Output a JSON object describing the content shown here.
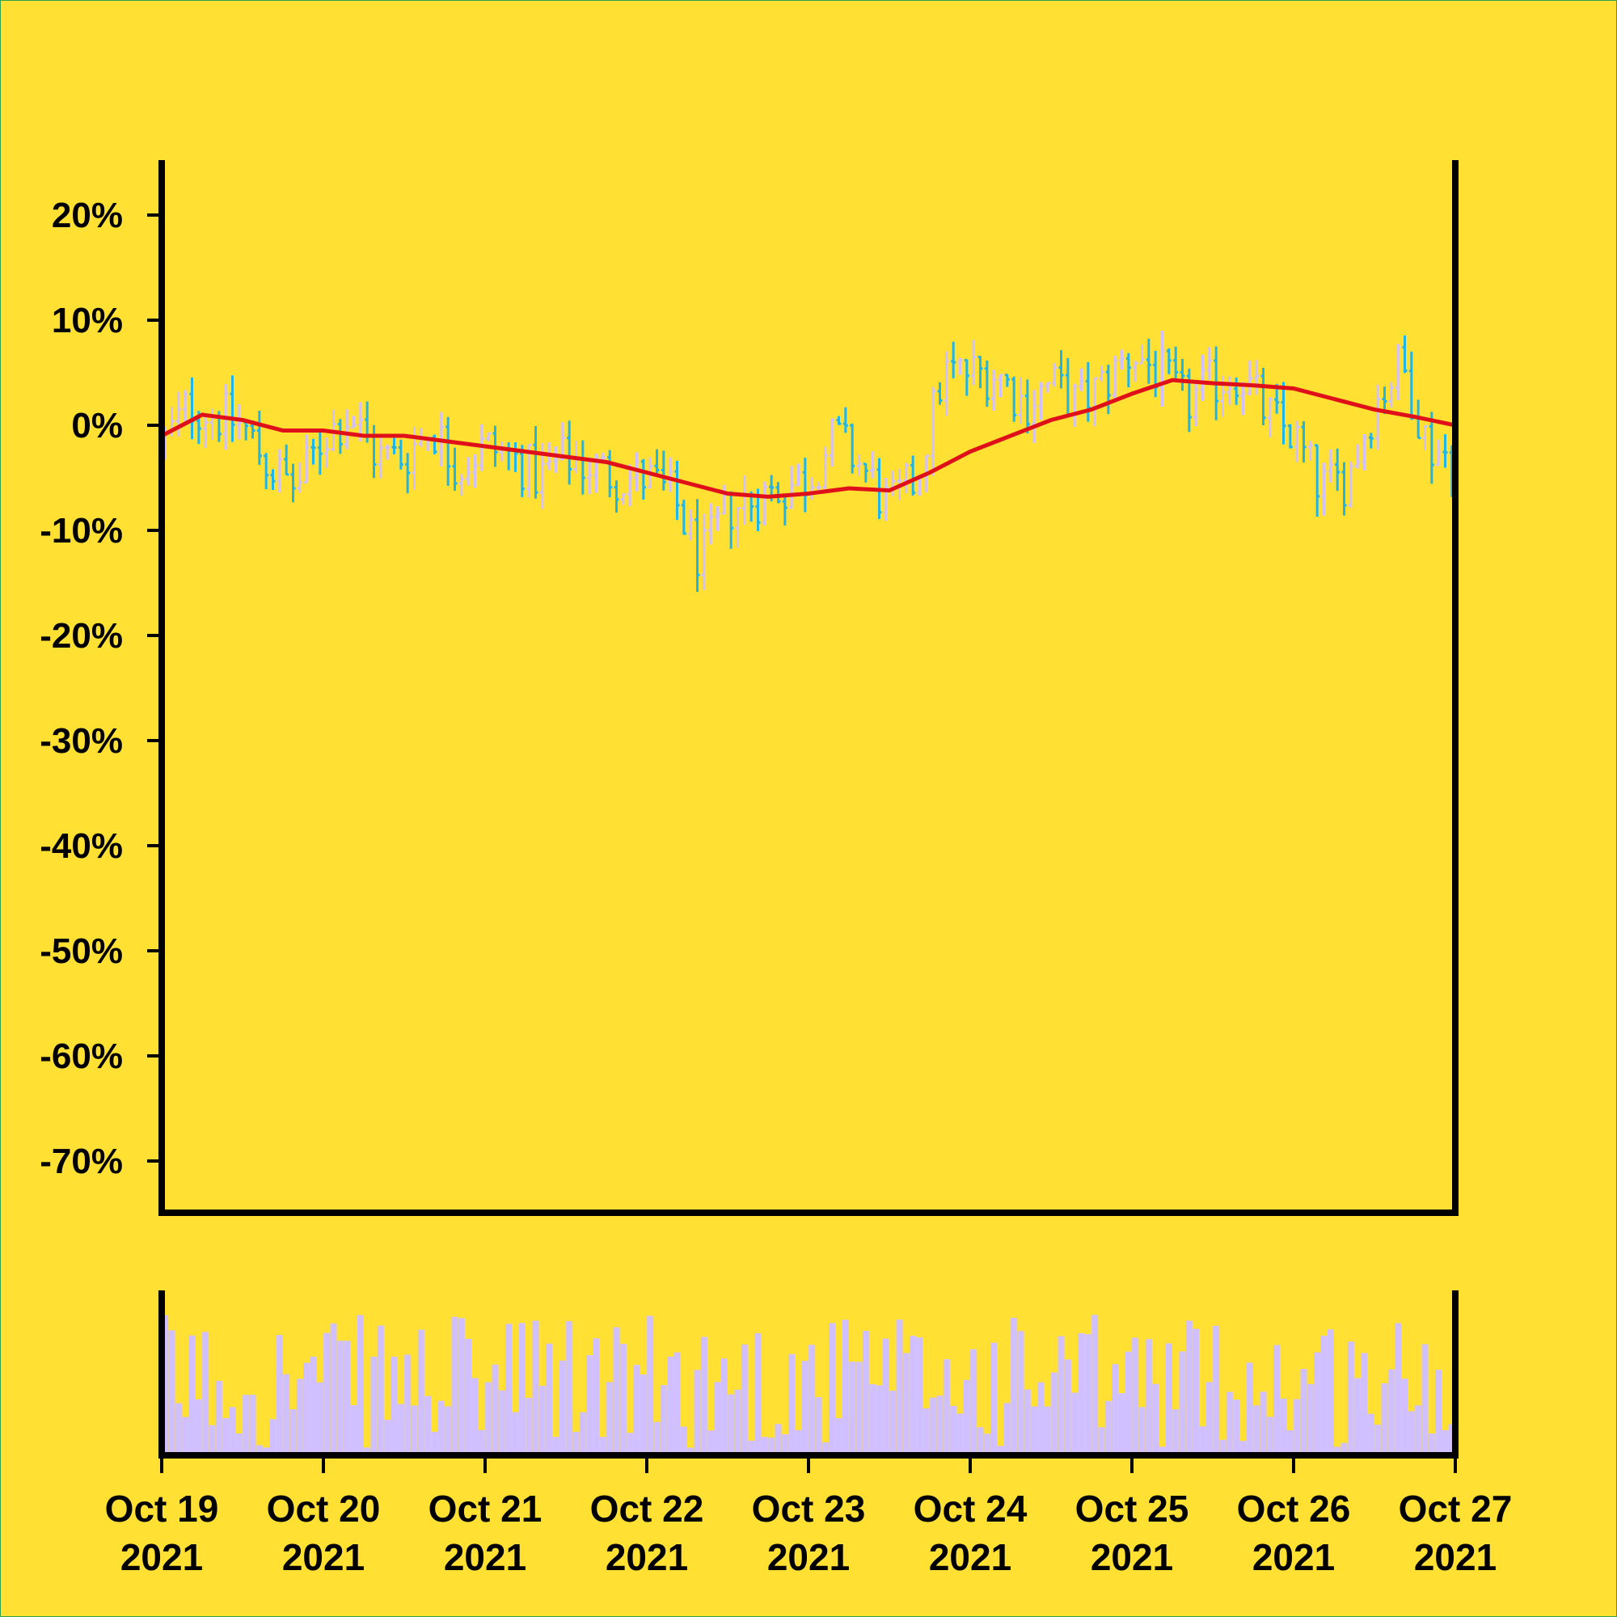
{
  "chart_data": {
    "type": "ohlc",
    "title": "",
    "xlabel": "",
    "ylabel": "",
    "ylim": [
      -0.75,
      0.25
    ],
    "y_ticks": [
      {
        "value": 0.2,
        "label": "20%"
      },
      {
        "value": 0.1,
        "label": "10%"
      },
      {
        "value": 0.0,
        "label": "0%"
      },
      {
        "value": -0.1,
        "label": "-10%"
      },
      {
        "value": -0.2,
        "label": "-20%"
      },
      {
        "value": -0.3,
        "label": "-30%"
      },
      {
        "value": -0.4,
        "label": "-40%"
      },
      {
        "value": -0.5,
        "label": "-50%"
      },
      {
        "value": -0.6,
        "label": "-60%"
      },
      {
        "value": -0.7,
        "label": "-70%"
      }
    ],
    "x_ticks": [
      {
        "date": "2021-10-19",
        "line1": "Oct 19",
        "line2": "2021"
      },
      {
        "date": "2021-10-20",
        "line1": "Oct 20",
        "line2": "2021"
      },
      {
        "date": "2021-10-21",
        "line1": "Oct 21",
        "line2": "2021"
      },
      {
        "date": "2021-10-22",
        "line1": "Oct 22",
        "line2": "2021"
      },
      {
        "date": "2021-10-23",
        "line1": "Oct 23",
        "line2": "2021"
      },
      {
        "date": "2021-10-24",
        "line1": "Oct 24",
        "line2": "2021"
      },
      {
        "date": "2021-10-25",
        "line1": "Oct 25",
        "line2": "2021"
      },
      {
        "date": "2021-10-26",
        "line1": "Oct 26",
        "line2": "2021"
      },
      {
        "date": "2021-10-27",
        "line1": "Oct 27",
        "line2": "2021"
      }
    ],
    "x_range": [
      "2021-10-19",
      "2021-10-27"
    ],
    "price_close_curve": [
      [
        "2021-10-19T00:00",
        -0.02
      ],
      [
        "2021-10-19T04:00",
        0.02
      ],
      [
        "2021-10-19T08:00",
        0.01
      ],
      [
        "2021-10-19T12:00",
        0.0
      ],
      [
        "2021-10-19T16:00",
        -0.04
      ],
      [
        "2021-10-19T20:00",
        -0.06
      ],
      [
        "2021-10-20T00:00",
        -0.01
      ],
      [
        "2021-10-20T04:00",
        0.01
      ],
      [
        "2021-10-20T08:00",
        -0.03
      ],
      [
        "2021-10-20T12:00",
        -0.03
      ],
      [
        "2021-10-20T16:00",
        0.0
      ],
      [
        "2021-10-20T20:00",
        -0.04
      ],
      [
        "2021-10-21T00:00",
        -0.02
      ],
      [
        "2021-10-21T04:00",
        -0.03
      ],
      [
        "2021-10-21T08:00",
        -0.05
      ],
      [
        "2021-10-21T12:00",
        -0.03
      ],
      [
        "2021-10-21T16:00",
        -0.04
      ],
      [
        "2021-10-21T20:00",
        -0.05
      ],
      [
        "2021-10-22T00:00",
        -0.05
      ],
      [
        "2021-10-22T04:00",
        -0.07
      ],
      [
        "2021-10-22T08:00",
        -0.13
      ],
      [
        "2021-10-22T12:00",
        -0.08
      ],
      [
        "2021-10-22T16:00",
        -0.07
      ],
      [
        "2021-10-22T20:00",
        -0.06
      ],
      [
        "2021-10-23T00:00",
        -0.05
      ],
      [
        "2021-10-23T04:00",
        -0.01
      ],
      [
        "2021-10-23T08:00",
        -0.04
      ],
      [
        "2021-10-23T12:00",
        -0.08
      ],
      [
        "2021-10-23T16:00",
        -0.05
      ],
      [
        "2021-10-23T20:00",
        0.05
      ],
      [
        "2021-10-24T00:00",
        0.05
      ],
      [
        "2021-10-24T04:00",
        0.05
      ],
      [
        "2021-10-24T08:00",
        0.02
      ],
      [
        "2021-10-24T12:00",
        0.04
      ],
      [
        "2021-10-24T16:00",
        0.02
      ],
      [
        "2021-10-24T20:00",
        0.04
      ],
      [
        "2021-10-25T00:00",
        0.07
      ],
      [
        "2021-10-25T04:00",
        0.05
      ],
      [
        "2021-10-25T08:00",
        0.02
      ],
      [
        "2021-10-25T12:00",
        0.04
      ],
      [
        "2021-10-25T16:00",
        0.05
      ],
      [
        "2021-10-25T20:00",
        0.01
      ],
      [
        "2021-10-26T00:00",
        -0.01
      ],
      [
        "2021-10-26T04:00",
        -0.06
      ],
      [
        "2021-10-26T08:00",
        -0.05
      ],
      [
        "2021-10-26T12:00",
        0.02
      ],
      [
        "2021-10-26T16:00",
        0.06
      ],
      [
        "2021-10-26T20:00",
        -0.02
      ],
      [
        "2021-10-27T00:00",
        -0.03
      ]
    ],
    "moving_average": [
      [
        "2021-10-19T00:00",
        -0.01
      ],
      [
        "2021-10-19T06:00",
        0.01
      ],
      [
        "2021-10-19T12:00",
        0.005
      ],
      [
        "2021-10-19T18:00",
        -0.005
      ],
      [
        "2021-10-20T00:00",
        -0.005
      ],
      [
        "2021-10-20T06:00",
        -0.01
      ],
      [
        "2021-10-20T12:00",
        -0.01
      ],
      [
        "2021-10-20T18:00",
        -0.015
      ],
      [
        "2021-10-21T00:00",
        -0.02
      ],
      [
        "2021-10-21T06:00",
        -0.025
      ],
      [
        "2021-10-21T12:00",
        -0.03
      ],
      [
        "2021-10-21T18:00",
        -0.035
      ],
      [
        "2021-10-22T00:00",
        -0.045
      ],
      [
        "2021-10-22T06:00",
        -0.055
      ],
      [
        "2021-10-22T12:00",
        -0.065
      ],
      [
        "2021-10-22T18:00",
        -0.068
      ],
      [
        "2021-10-23T00:00",
        -0.065
      ],
      [
        "2021-10-23T06:00",
        -0.06
      ],
      [
        "2021-10-23T12:00",
        -0.062
      ],
      [
        "2021-10-23T18:00",
        -0.045
      ],
      [
        "2021-10-24T00:00",
        -0.025
      ],
      [
        "2021-10-24T06:00",
        -0.01
      ],
      [
        "2021-10-24T12:00",
        0.005
      ],
      [
        "2021-10-24T18:00",
        0.015
      ],
      [
        "2021-10-25T00:00",
        0.03
      ],
      [
        "2021-10-25T06:00",
        0.043
      ],
      [
        "2021-10-25T12:00",
        0.04
      ],
      [
        "2021-10-25T18:00",
        0.038
      ],
      [
        "2021-10-26T00:00",
        0.035
      ],
      [
        "2021-10-26T06:00",
        0.025
      ],
      [
        "2021-10-26T12:00",
        0.015
      ],
      [
        "2021-10-26T18:00",
        0.008
      ],
      [
        "2021-10-27T00:00",
        0.0
      ]
    ],
    "colors": {
      "background": "#ffe033",
      "up_bar": "#d0c0ff",
      "down_bar": "#1fb5e8",
      "moving_average": "#e0101a",
      "volume": "#d0c0ff",
      "axes": "#000000"
    },
    "volume_ylim": [
      0,
      1
    ],
    "grid": false,
    "legend": "none"
  }
}
